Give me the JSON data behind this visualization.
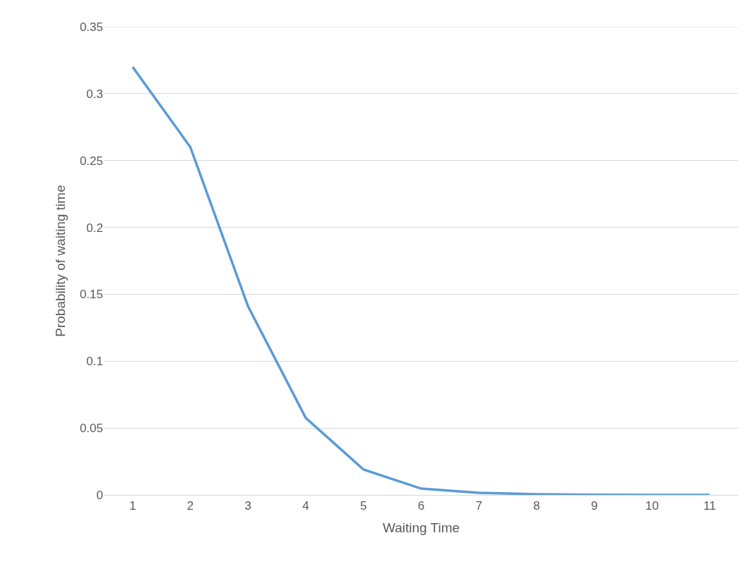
{
  "chart_data": {
    "type": "line",
    "xlabel": "Waiting Time",
    "ylabel": "Probability of waiting time",
    "categories": [
      "1",
      "2",
      "3",
      "4",
      "5",
      "6",
      "7",
      "8",
      "9",
      "10",
      "11"
    ],
    "series": [
      {
        "color": "#5b9bd5",
        "values": [
          0.32,
          0.26,
          0.141,
          0.0575,
          0.019,
          0.0047,
          0.0016,
          0.0005,
          0.0001,
          0,
          0
        ]
      }
    ],
    "ylim": [
      0,
      0.35
    ],
    "yticks": [
      0,
      0.05,
      0.1,
      0.15,
      0.2,
      0.25,
      0.3,
      0.35
    ],
    "grid": "y",
    "marker": "none",
    "line_style": "solid"
  }
}
